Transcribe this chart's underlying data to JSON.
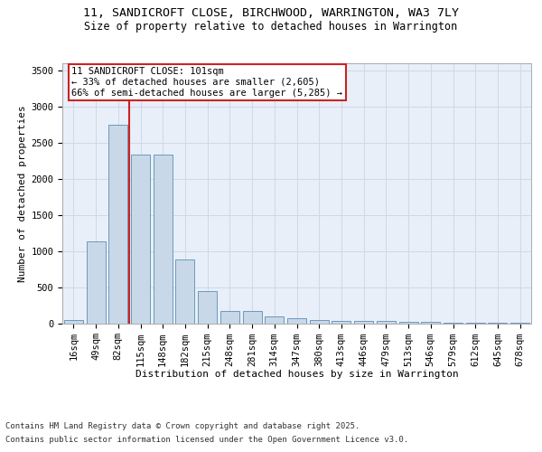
{
  "title1": "11, SANDICROFT CLOSE, BIRCHWOOD, WARRINGTON, WA3 7LY",
  "title2": "Size of property relative to detached houses in Warrington",
  "xlabel": "Distribution of detached houses by size in Warrington",
  "ylabel": "Number of detached properties",
  "categories": [
    "16sqm",
    "49sqm",
    "82sqm",
    "115sqm",
    "148sqm",
    "182sqm",
    "215sqm",
    "248sqm",
    "281sqm",
    "314sqm",
    "347sqm",
    "380sqm",
    "413sqm",
    "446sqm",
    "479sqm",
    "513sqm",
    "546sqm",
    "579sqm",
    "612sqm",
    "645sqm",
    "678sqm"
  ],
  "values": [
    50,
    1130,
    2750,
    2330,
    2330,
    880,
    440,
    175,
    165,
    90,
    65,
    50,
    35,
    30,
    30,
    15,
    15,
    10,
    8,
    5,
    5
  ],
  "bar_color": "#c8d8e8",
  "bar_edge_color": "#5b8db8",
  "grid_color": "#d0d8e8",
  "background_color": "#e8eff8",
  "vline_x": 2.5,
  "vline_color": "#cc2222",
  "annotation_text": "11 SANDICROFT CLOSE: 101sqm\n← 33% of detached houses are smaller (2,605)\n66% of semi-detached houses are larger (5,285) →",
  "annotation_box_color": "#ffffff",
  "annotation_box_edge_color": "#cc2222",
  "ylim": [
    0,
    3600
  ],
  "yticks": [
    0,
    500,
    1000,
    1500,
    2000,
    2500,
    3000,
    3500
  ],
  "footer_line1": "Contains HM Land Registry data © Crown copyright and database right 2025.",
  "footer_line2": "Contains public sector information licensed under the Open Government Licence v3.0.",
  "title1_fontsize": 9.5,
  "title2_fontsize": 8.5,
  "xlabel_fontsize": 8,
  "ylabel_fontsize": 8,
  "tick_fontsize": 7.5,
  "annotation_fontsize": 7.5,
  "footer_fontsize": 6.5
}
